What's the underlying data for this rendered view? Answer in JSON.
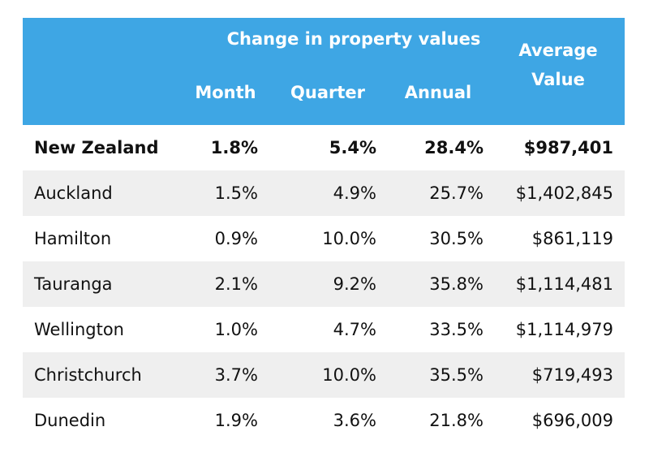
{
  "table": {
    "group_header": "Change in property values",
    "columns": {
      "month": "Month",
      "quarter": "Quarter",
      "annual": "Annual",
      "average_line1": "Average",
      "average_line2": "Value"
    },
    "rows": [
      {
        "region": "New Zealand",
        "month": "1.8%",
        "quarter": "5.4%",
        "annual": "28.4%",
        "average": "$987,401"
      },
      {
        "region": "Auckland",
        "month": "1.5%",
        "quarter": "4.9%",
        "annual": "25.7%",
        "average": "$1,402,845"
      },
      {
        "region": "Hamilton",
        "month": "0.9%",
        "quarter": "10.0%",
        "annual": "30.5%",
        "average": "$861,119"
      },
      {
        "region": "Tauranga",
        "month": "2.1%",
        "quarter": "9.2%",
        "annual": "35.8%",
        "average": "$1,114,481"
      },
      {
        "region": "Wellington",
        "month": "1.0%",
        "quarter": "4.7%",
        "annual": "33.5%",
        "average": "$1,114,979"
      },
      {
        "region": "Christchurch",
        "month": "3.7%",
        "quarter": "10.0%",
        "annual": "35.5%",
        "average": "$719,493"
      },
      {
        "region": "Dunedin",
        "month": "1.9%",
        "quarter": "3.6%",
        "annual": "21.8%",
        "average": "$696,009"
      }
    ],
    "colors": {
      "header_bg": "#3ea6e4",
      "header_text": "#ffffff",
      "shaded_row": "#efefef"
    }
  }
}
